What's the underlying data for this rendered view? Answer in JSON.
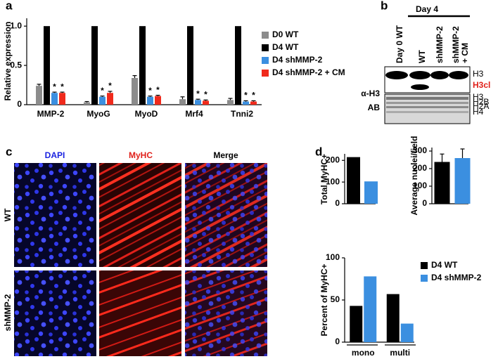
{
  "panel_labels": [
    "a",
    "b",
    "c",
    "d"
  ],
  "chart_data": [
    {
      "type": "bar",
      "y_label": "Relative expression",
      "categories": [
        "MMP-2",
        "MyoG",
        "MyoD",
        "Mrf4",
        "Tnni2"
      ],
      "series": [
        {
          "name": "D0 WT",
          "color": "#8c8c8c",
          "values": [
            0.24,
            0.03,
            0.34,
            0.07,
            0.06
          ],
          "errors": [
            0.02,
            0.01,
            0.03,
            0.03,
            0.02
          ],
          "markers": [
            null,
            null,
            null,
            null,
            null
          ]
        },
        {
          "name": "D4 WT",
          "color": "#000000",
          "values": [
            1.0,
            1.0,
            1.0,
            1.0,
            1.0
          ],
          "errors": [
            null,
            null,
            null,
            null,
            null
          ],
          "markers": [
            null,
            null,
            null,
            null,
            null
          ]
        },
        {
          "name": "D4 shMMP-2",
          "color": "#3b8fe0",
          "values": [
            0.15,
            0.1,
            0.1,
            0.06,
            0.04
          ],
          "errors": [
            0.01,
            0.01,
            0.01,
            0.01,
            0.01
          ],
          "markers": [
            "*",
            "*",
            "*",
            "*",
            "*"
          ]
        },
        {
          "name": "D4 shMMP-2 + CM",
          "color": "#f02a1c",
          "values": [
            0.15,
            0.15,
            0.11,
            0.05,
            0.04
          ],
          "errors": [
            0.01,
            0.02,
            0.01,
            0.01,
            0.01
          ],
          "markers": [
            "*",
            "*",
            "*",
            "*",
            "*"
          ]
        }
      ],
      "ylim": [
        0,
        1.1
      ],
      "yticks": [
        0,
        0.5,
        {
          "value": 1,
          "label": "1.0"
        }
      ],
      "legend": "right"
    },
    {
      "type": "bar",
      "y_label": "Total MyHC+",
      "categories": [
        null,
        null
      ],
      "values": [
        215,
        103
      ],
      "colors": [
        "#000000",
        "#3b8fe0"
      ],
      "ylim": [
        0,
        230
      ],
      "yticks": [
        0,
        100,
        200
      ]
    },
    {
      "type": "bar",
      "y_label": "Average nuclei/field",
      "categories": [
        null,
        null
      ],
      "values": [
        238,
        260
      ],
      "errors": [
        45,
        52
      ],
      "colors": [
        "#000000",
        "#3b8fe0"
      ],
      "ylim": [
        0,
        320
      ],
      "yticks": [
        0,
        100,
        200,
        300
      ]
    },
    {
      "type": "bar",
      "y_label": "Percent of MyHC+",
      "categories": [
        "mono",
        "multi"
      ],
      "series": [
        {
          "name": "D4 WT",
          "color": "#000000",
          "values": [
            43,
            57
          ]
        },
        {
          "name": "D4 shMMP-2",
          "color": "#3b8fe0",
          "values": [
            78,
            22
          ]
        }
      ],
      "ylim": [
        0,
        100
      ],
      "yticks": [
        0,
        50,
        100
      ],
      "legend": "right"
    }
  ],
  "blot": {
    "header": "Day 4",
    "lanes": [
      "Day 0 WT",
      "WT",
      "shMMP-2",
      [
        "shMMP-2",
        "+ CM"
      ]
    ],
    "rows": [
      "α-H3",
      "AB"
    ],
    "bands": [
      "H3",
      "H3cl",
      "H3",
      "H2B",
      "H2A",
      "H4"
    ]
  },
  "micrographs": {
    "columns": [
      "DAPI",
      "MyHC",
      "Merge"
    ],
    "rows": [
      "WT",
      "shMMP-2"
    ]
  }
}
